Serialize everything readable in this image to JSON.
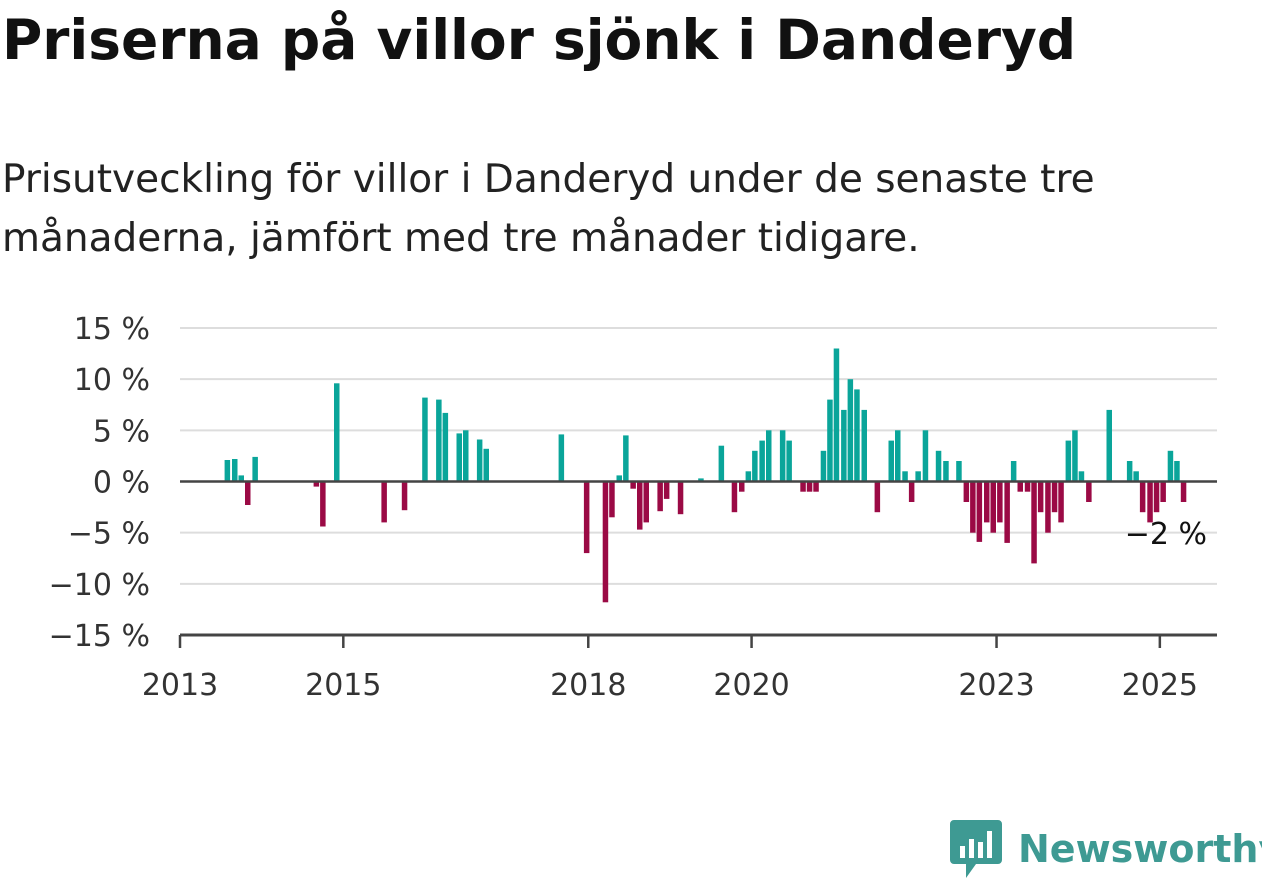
{
  "chart_data": {
    "type": "bar",
    "title": "Priserna på villor sjönk i Danderyd",
    "subtitle": "Prisutveckling för villor i Danderyd under de senaste tre månaderna, jämfört med tre månader tidigare.",
    "ylim": [
      -15,
      15
    ],
    "y_ticks": [
      15,
      10,
      5,
      0,
      -5,
      -10,
      -15
    ],
    "y_tick_labels": [
      "15 %",
      "10 %",
      "5 %",
      "0 %",
      "−10 %",
      "−15 %"
    ],
    "y_tick_labels_full": [
      "15 %",
      "10 %",
      "5 %",
      "0 %",
      "−5 %",
      "−10 %",
      "−15 %"
    ],
    "x_ticks": [
      2013,
      2015,
      2018,
      2020,
      2023,
      2025
    ],
    "x_tick_labels": [
      "2013",
      "2015",
      "2018",
      "2020",
      "2023",
      "2025"
    ],
    "xlim": [
      2013.0,
      2025.7
    ],
    "grid": true,
    "colors": {
      "positive": "#0aa59a",
      "negative": "#9b0a45",
      "axis": "#444444",
      "grid": "#dddddd"
    },
    "annotation": {
      "text": "−2 %",
      "x": 2025.08,
      "y": -2
    },
    "points": [
      {
        "x": 2013.58,
        "y": 2.1
      },
      {
        "x": 2013.67,
        "y": 2.2
      },
      {
        "x": 2013.75,
        "y": 0.6
      },
      {
        "x": 2013.83,
        "y": -2.3
      },
      {
        "x": 2013.92,
        "y": 2.4
      },
      {
        "x": 2014.67,
        "y": -0.5
      },
      {
        "x": 2014.75,
        "y": -4.4
      },
      {
        "x": 2014.92,
        "y": 9.6
      },
      {
        "x": 2015.5,
        "y": -4.0
      },
      {
        "x": 2015.75,
        "y": -2.8
      },
      {
        "x": 2016.0,
        "y": 8.2
      },
      {
        "x": 2016.17,
        "y": 8.0
      },
      {
        "x": 2016.25,
        "y": 6.7
      },
      {
        "x": 2016.42,
        "y": 4.7
      },
      {
        "x": 2016.5,
        "y": 5.0
      },
      {
        "x": 2016.67,
        "y": 4.1
      },
      {
        "x": 2016.75,
        "y": 3.2
      },
      {
        "x": 2017.67,
        "y": 4.6
      },
      {
        "x": 2017.98,
        "y": -7.0
      },
      {
        "x": 2018.21,
        "y": -11.8
      },
      {
        "x": 2018.29,
        "y": -3.5
      },
      {
        "x": 2018.38,
        "y": 0.6
      },
      {
        "x": 2018.46,
        "y": 4.5
      },
      {
        "x": 2018.55,
        "y": -0.7
      },
      {
        "x": 2018.63,
        "y": -4.7
      },
      {
        "x": 2018.71,
        "y": -4.0
      },
      {
        "x": 2018.88,
        "y": -2.9
      },
      {
        "x": 2018.96,
        "y": -1.7
      },
      {
        "x": 2019.13,
        "y": -3.2
      },
      {
        "x": 2019.38,
        "y": 0.3
      },
      {
        "x": 2019.63,
        "y": 3.5
      },
      {
        "x": 2019.79,
        "y": -3.0
      },
      {
        "x": 2019.88,
        "y": -1.0
      },
      {
        "x": 2019.96,
        "y": 1.0
      },
      {
        "x": 2020.04,
        "y": 3.0
      },
      {
        "x": 2020.13,
        "y": 4.0
      },
      {
        "x": 2020.21,
        "y": 5.0
      },
      {
        "x": 2020.38,
        "y": 5.0
      },
      {
        "x": 2020.46,
        "y": 4.0
      },
      {
        "x": 2020.63,
        "y": -1.0
      },
      {
        "x": 2020.71,
        "y": -1.0
      },
      {
        "x": 2020.79,
        "y": -1.0
      },
      {
        "x": 2020.88,
        "y": 3.0
      },
      {
        "x": 2020.96,
        "y": 8.0
      },
      {
        "x": 2021.04,
        "y": 13.0
      },
      {
        "x": 2021.13,
        "y": 7.0
      },
      {
        "x": 2021.21,
        "y": 10.0
      },
      {
        "x": 2021.29,
        "y": 9.0
      },
      {
        "x": 2021.38,
        "y": 7.0
      },
      {
        "x": 2021.54,
        "y": -3.0
      },
      {
        "x": 2021.71,
        "y": 4.0
      },
      {
        "x": 2021.79,
        "y": 5.0
      },
      {
        "x": 2021.88,
        "y": 1.0
      },
      {
        "x": 2021.96,
        "y": -2.0
      },
      {
        "x": 2022.04,
        "y": 1.0
      },
      {
        "x": 2022.13,
        "y": 5.0
      },
      {
        "x": 2022.29,
        "y": 3.0
      },
      {
        "x": 2022.38,
        "y": 2.0
      },
      {
        "x": 2022.54,
        "y": 2.0
      },
      {
        "x": 2022.63,
        "y": -2.0
      },
      {
        "x": 2022.71,
        "y": -5.0
      },
      {
        "x": 2022.79,
        "y": -5.9
      },
      {
        "x": 2022.88,
        "y": -4.0
      },
      {
        "x": 2022.96,
        "y": -5.0
      },
      {
        "x": 2023.04,
        "y": -4.0
      },
      {
        "x": 2023.13,
        "y": -6.0
      },
      {
        "x": 2023.21,
        "y": 2.0
      },
      {
        "x": 2023.29,
        "y": -1.0
      },
      {
        "x": 2023.38,
        "y": -1.0
      },
      {
        "x": 2023.46,
        "y": -8.0
      },
      {
        "x": 2023.54,
        "y": -3.0
      },
      {
        "x": 2023.63,
        "y": -5.0
      },
      {
        "x": 2023.71,
        "y": -3.0
      },
      {
        "x": 2023.79,
        "y": -4.0
      },
      {
        "x": 2023.88,
        "y": 4.0
      },
      {
        "x": 2023.96,
        "y": 5.0
      },
      {
        "x": 2024.04,
        "y": 1.0
      },
      {
        "x": 2024.13,
        "y": -2.0
      },
      {
        "x": 2024.38,
        "y": 7.0
      },
      {
        "x": 2024.63,
        "y": 2.0
      },
      {
        "x": 2024.71,
        "y": 1.0
      },
      {
        "x": 2024.79,
        "y": -3.0
      },
      {
        "x": 2024.88,
        "y": -4.0
      },
      {
        "x": 2024.96,
        "y": -3.0
      },
      {
        "x": 2025.04,
        "y": -2.0
      },
      {
        "x": 2025.13,
        "y": 3.0
      },
      {
        "x": 2025.21,
        "y": 2.0
      },
      {
        "x": 2025.29,
        "y": -2.0
      }
    ]
  },
  "brand": {
    "name": "Newsworthy",
    "icon": "newsworthy-logo-icon",
    "color": "#3e9a93"
  }
}
